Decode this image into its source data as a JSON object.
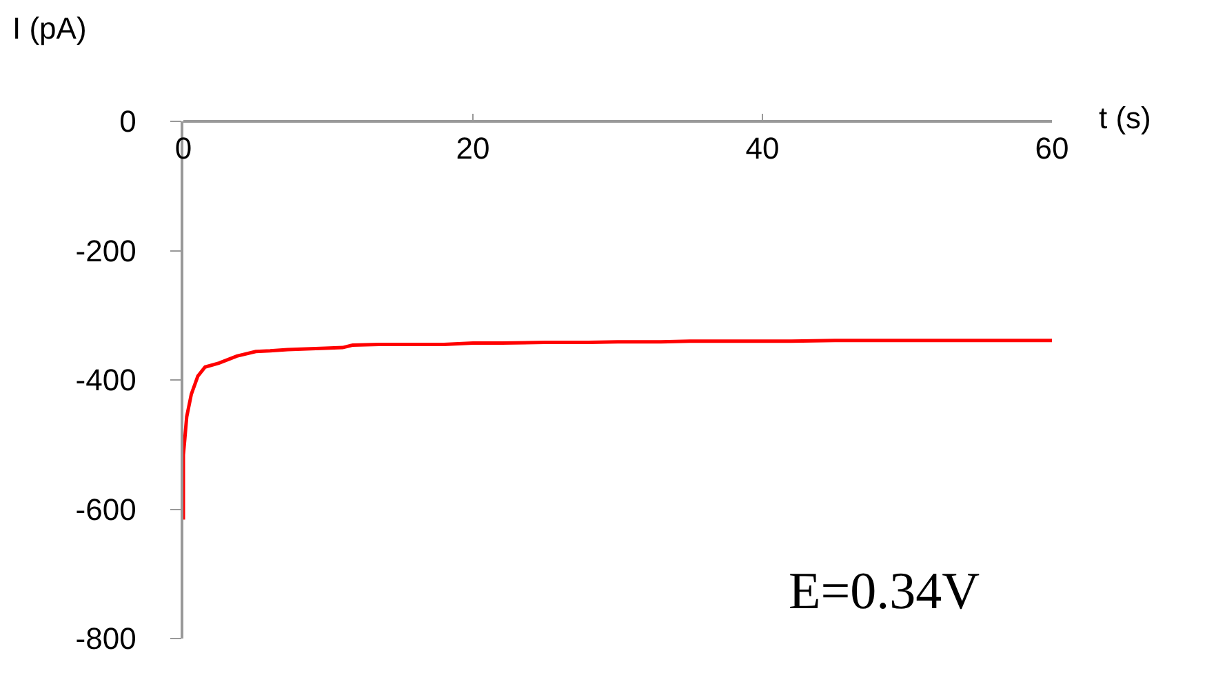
{
  "chart_data": {
    "type": "line",
    "xlabel": "t (s)",
    "ylabel": "I (pA)",
    "x": [
      0,
      0,
      0.1,
      0.23,
      0.55,
      1.0,
      1.5,
      2.45,
      3.7,
      5.0,
      6.0,
      7.2,
      8.5,
      9.8,
      11.0,
      11.7,
      13.5,
      15.8,
      18,
      20,
      22,
      25,
      28,
      30,
      33,
      35,
      38,
      42,
      45,
      48,
      50,
      53,
      56,
      58,
      60
    ],
    "series": [
      {
        "color": "#ff0000",
        "values": [
          -616,
          -516,
          -491,
          -457,
          -422,
          -394,
          -380,
          -374,
          -363,
          -356,
          -355,
          -353,
          -352,
          -351,
          -350,
          -346,
          -345,
          -345,
          -345,
          -343,
          -343,
          -342,
          -342,
          -341,
          -341,
          -340,
          -340,
          -340,
          -339,
          -339,
          -339,
          -339,
          -339,
          -339,
          -339
        ]
      }
    ],
    "xlim": [
      0,
      60
    ],
    "xticks": [
      0,
      20,
      40,
      60
    ],
    "ylim": [
      -800,
      0
    ],
    "yticks": [
      -800,
      -600,
      -400,
      -200,
      0
    ],
    "legend": false,
    "marker": "none",
    "line_style": "solid",
    "annotations": [
      "E=0.34V"
    ]
  }
}
